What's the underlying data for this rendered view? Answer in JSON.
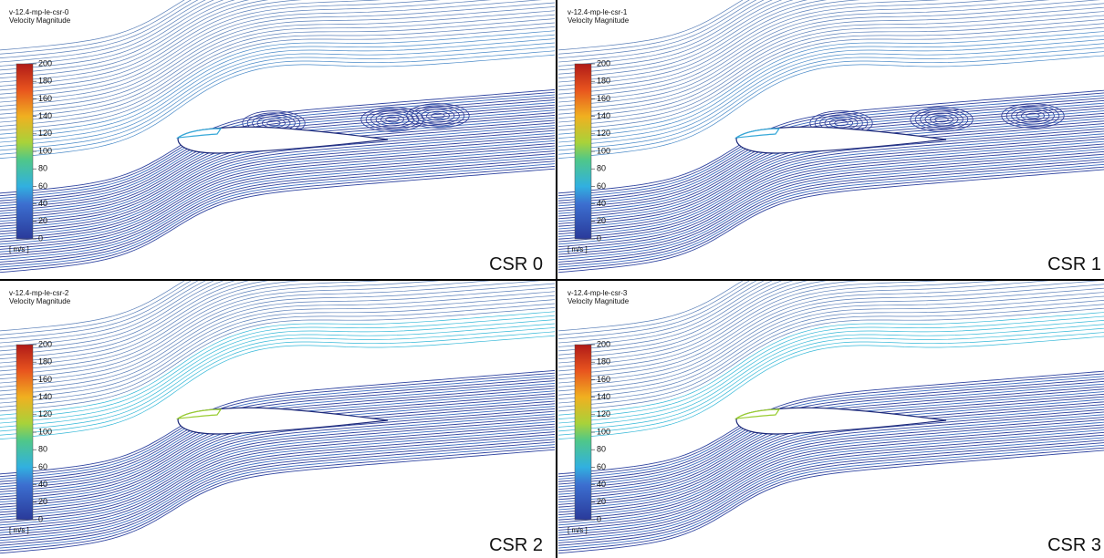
{
  "panels": [
    {
      "title": "v-12.4-mp-le-csr-0",
      "subtitle": "Velocity Magnitude",
      "label": "CSR 0"
    },
    {
      "title": "v-12.4-mp-le-csr-1",
      "subtitle": "Velocity Magnitude",
      "label": "CSR 1"
    },
    {
      "title": "v-12.4-mp-le-csr-2",
      "subtitle": "Velocity Magnitude",
      "label": "CSR 2"
    },
    {
      "title": "v-12.4-mp-le-csr-3",
      "subtitle": "Velocity Magnitude",
      "label": "CSR 3"
    }
  ],
  "colorbar": {
    "ticks": [
      0,
      20,
      40,
      60,
      80,
      100,
      120,
      140,
      160,
      180,
      200
    ],
    "unit": "[ m/s ]"
  }
}
